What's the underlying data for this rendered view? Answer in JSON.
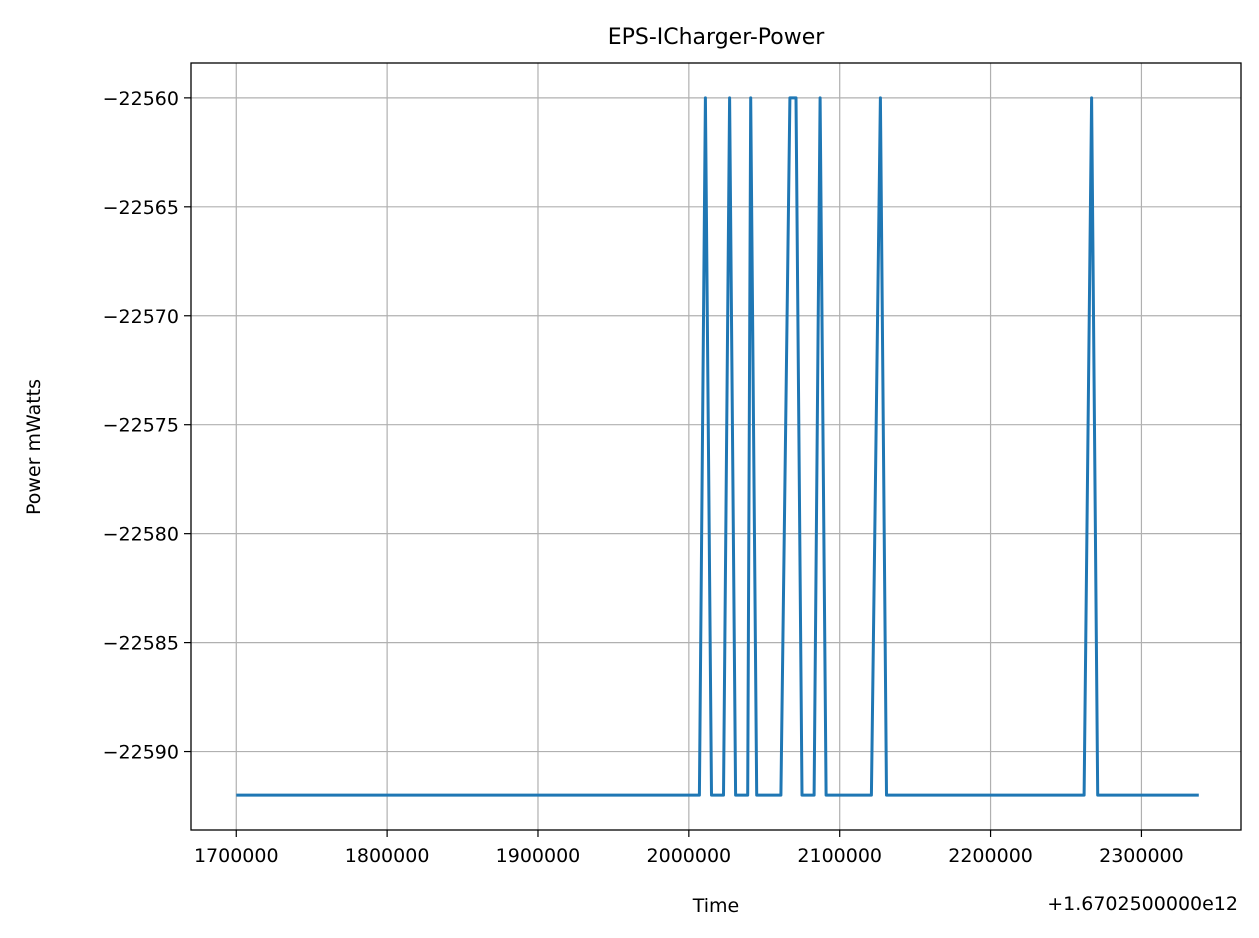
{
  "chart_data": {
    "type": "line",
    "title": "EPS-ICharger-Power",
    "xlabel": "Time",
    "ylabel": "Power mWatts",
    "x_offset_label": "+1.6702500000e12",
    "xlim": [
      1670251670000,
      1670252366000
    ],
    "ylim": [
      -22593.6,
      -22558.4
    ],
    "x_ticks": [
      1670251700000,
      1670251800000,
      1670251900000,
      1670252000000,
      1670252100000,
      1670252200000,
      1670252300000
    ],
    "x_tick_labels": [
      "1700000",
      "1800000",
      "1900000",
      "2000000",
      "2100000",
      "2200000",
      "2300000"
    ],
    "y_ticks": [
      -22560,
      -22565,
      -22570,
      -22575,
      -22580,
      -22585,
      -22590
    ],
    "y_tick_labels": [
      "−22560",
      "−22565",
      "−22570",
      "−22575",
      "−22580",
      "−22585",
      "−22590"
    ],
    "grid": true,
    "series": [
      {
        "color": "#1f77b4",
        "x": [
          1670251701000,
          1670252007000,
          1670252011000,
          1670252015000,
          1670252019000,
          1670252023000,
          1670252027000,
          1670252031000,
          1670252035000,
          1670252039000,
          1670252041000,
          1670252045000,
          1670252049000,
          1670252053000,
          1670252057000,
          1670252061000,
          1670252067000,
          1670252071000,
          1670252075000,
          1670252079000,
          1670252083000,
          1670252087000,
          1670252091000,
          1670252095000,
          1670252099000,
          1670252103000,
          1670252107000,
          1670252111000,
          1670252115000,
          1670252121000,
          1670252127000,
          1670252131000,
          1670252135000,
          1670252139000,
          1670252143000,
          1670252147000,
          1670252151000,
          1670252155000,
          1670252159000,
          1670252163000,
          1670252167000,
          1670252171000,
          1670252175000,
          1670252179000,
          1670252183000,
          1670252187000,
          1670252191000,
          1670252195000,
          1670252199000,
          1670252203000,
          1670252207000,
          1670252211000,
          1670252215000,
          1670252219000,
          1670252223000,
          1670252227000,
          1670252231000,
          1670252235000,
          1670252239000,
          1670252243000,
          1670252247000,
          1670252251000,
          1670252255000,
          1670252262000,
          1670252267000,
          1670252271000,
          1670252337000
        ],
        "y": [
          -22592,
          -22592,
          -22560,
          -22592,
          -22592,
          -22592,
          -22560,
          -22592,
          -22592,
          -22592,
          -22560,
          -22592,
          -22592,
          -22592,
          -22592,
          -22592,
          -22560,
          -22560,
          -22592,
          -22592,
          -22592,
          -22560,
          -22592,
          -22592,
          -22592,
          -22592,
          -22592,
          -22592,
          -22592,
          -22592,
          -22560,
          -22592,
          -22592,
          -22592,
          -22592,
          -22592,
          -22592,
          -22592,
          -22592,
          -22592,
          -22592,
          -22592,
          -22592,
          -22592,
          -22592,
          -22592,
          -22592,
          -22592,
          -22592,
          -22592,
          -22592,
          -22592,
          -22592,
          -22592,
          -22592,
          -22592,
          -22592,
          -22592,
          -22592,
          -22592,
          -22592,
          -22592,
          -22592,
          -22592,
          -22560,
          -22592,
          -22592
        ]
      }
    ]
  }
}
